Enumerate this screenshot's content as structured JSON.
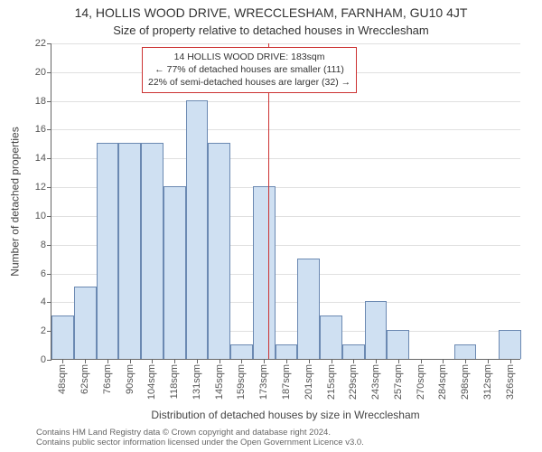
{
  "chart": {
    "type": "histogram",
    "title": "14, HOLLIS WOOD DRIVE, WRECCLESHAM, FARNHAM, GU10 4JT",
    "subtitle": "Size of property relative to detached houses in Wrecclesham",
    "ylabel": "Number of detached properties",
    "xlabel": "Distribution of detached houses by size in Wrecclesham",
    "ylim": [
      0,
      22
    ],
    "ytick_step": 2,
    "x_tick_labels": [
      "48sqm",
      "62sqm",
      "76sqm",
      "90sqm",
      "104sqm",
      "118sqm",
      "131sqm",
      "145sqm",
      "159sqm",
      "173sqm",
      "187sqm",
      "201sqm",
      "215sqm",
      "229sqm",
      "243sqm",
      "257sqm",
      "270sqm",
      "284sqm",
      "298sqm",
      "312sqm",
      "326sqm"
    ],
    "series": {
      "values": [
        3,
        5,
        15,
        15,
        15,
        12,
        18,
        15,
        1,
        12,
        1,
        7,
        3,
        1,
        4,
        2,
        0,
        0,
        1,
        0,
        2
      ],
      "bar_color": "#cfe0f2",
      "bar_border_color": "#6b89b2",
      "bar_width_frac": 1.0
    },
    "grid_color": "#e0e0e0",
    "background_color": "#ffffff",
    "axis_color": "#666666",
    "reference_line": {
      "color": "#cc3333",
      "position_index": 9.7
    },
    "annotation": {
      "lines": [
        "14 HOLLIS WOOD DRIVE: 183sqm",
        "← 77% of detached houses are smaller (111)",
        "22% of semi-detached houses are larger (32) →"
      ],
      "border_color": "#cc3333"
    },
    "footer": "Contains HM Land Registry data © Crown copyright and database right 2024.\nContains public sector information licensed under the Open Government Licence v3.0.",
    "title_fontsize": 14,
    "subtitle_fontsize": 13,
    "label_fontsize": 12,
    "tick_fontsize": 11,
    "annotation_fontsize": 10.5,
    "footer_fontsize": 9.5
  }
}
